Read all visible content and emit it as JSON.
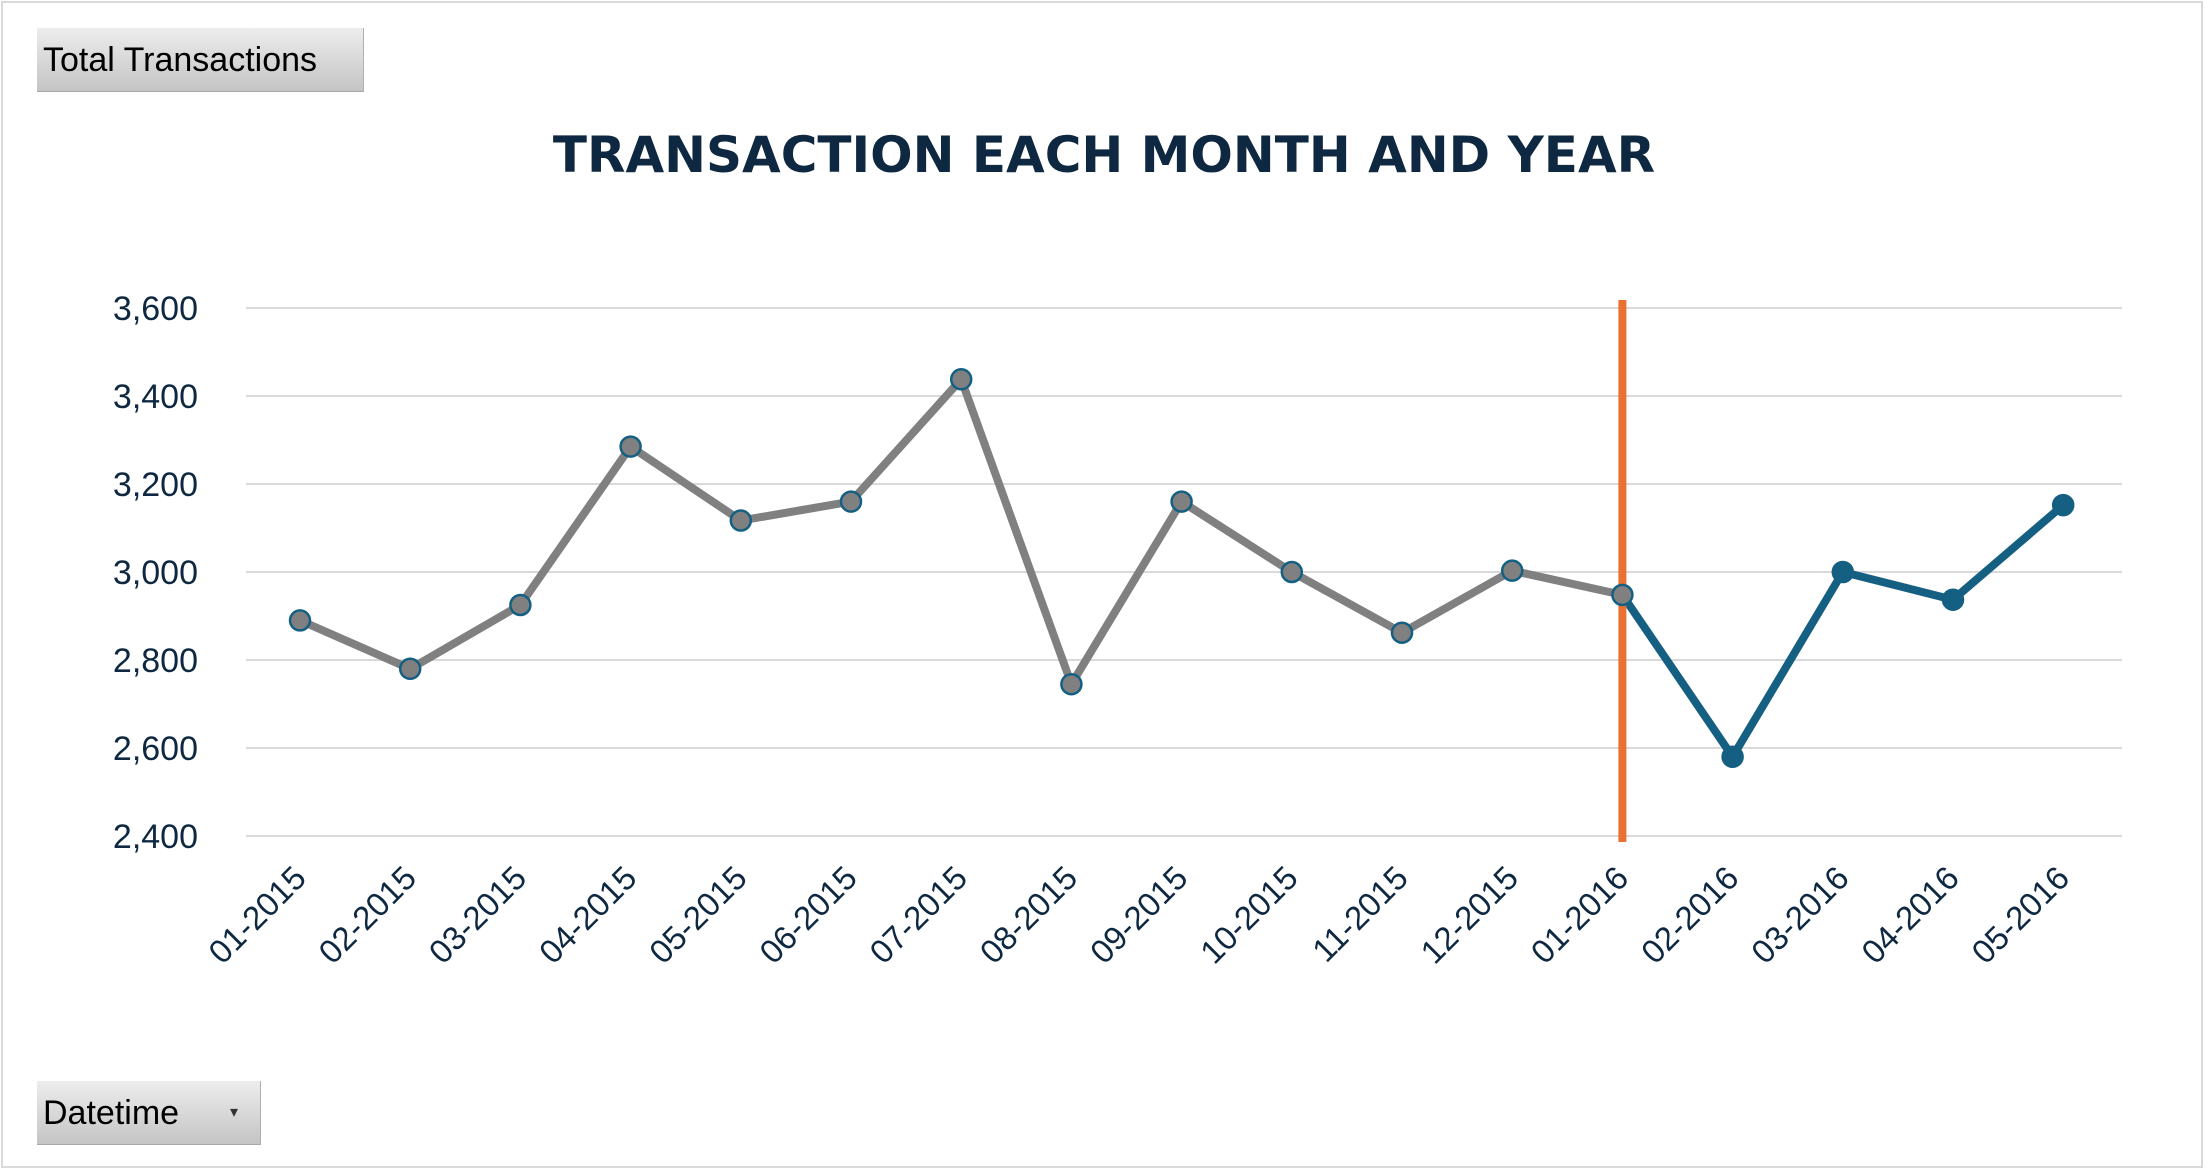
{
  "pivot_buttons": {
    "values_field": "Total Transactions",
    "axis_field": "Datetime",
    "axis_dropdown_icon": "dropdown-arrow-icon"
  },
  "colors": {
    "line_2015": "#808080",
    "line_2016": "#156082",
    "marker_outline": "#156082",
    "divider": "#e97132",
    "title": "#0e2841",
    "gridline": "#d9d9d9"
  },
  "chart_data": {
    "type": "line",
    "title": "TRANSACTION EACH MONTH AND YEAR",
    "xlabel": "",
    "ylabel": "",
    "categories": [
      "01-2015",
      "02-2015",
      "03-2015",
      "04-2015",
      "05-2015",
      "06-2015",
      "07-2015",
      "08-2015",
      "09-2015",
      "10-2015",
      "11-2015",
      "12-2015",
      "01-2016",
      "02-2016",
      "03-2016",
      "04-2016",
      "05-2016"
    ],
    "series": [
      {
        "values": [
          2890,
          2780,
          2925,
          3285,
          3117,
          3160,
          3438,
          2745,
          3160,
          3000,
          2862,
          3003,
          2948,
          2580,
          3000,
          2937,
          3152
        ]
      }
    ],
    "segments": [
      {
        "from": "01-2015",
        "to": "01-2016",
        "color": "#808080"
      },
      {
        "from": "01-2016",
        "to": "05-2016",
        "color": "#156082"
      }
    ],
    "divider_at": "01-2016",
    "ylim": [
      2400,
      3600
    ],
    "yticks": [
      2400,
      2600,
      2800,
      3000,
      3200,
      3400,
      3600
    ],
    "ytick_labels": [
      "2,400",
      "2,600",
      "2,800",
      "3,000",
      "3,200",
      "3,400",
      "3,600"
    ],
    "grid": true,
    "legend": "none"
  }
}
